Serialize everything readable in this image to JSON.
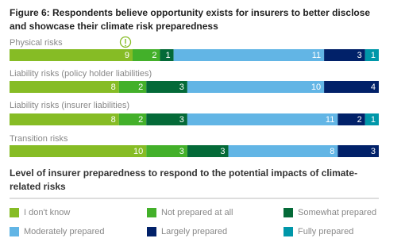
{
  "chart_data": {
    "type": "stacked-bar-horizontal",
    "title": "Figure 6: Respondents believe opportunity exists for insurers to better disclose and showcase their climate risk preparedness",
    "legend_title": "Level of insurer preparedness to respond to the potential impacts of climate-related risks",
    "categories": [
      "Physical risks",
      "Liability risks (policy holder liabilities)",
      "Liability risks (insurer liabilities)",
      "Transition risks"
    ],
    "series": [
      {
        "name": "I don't know",
        "color": "#86bc25",
        "values": [
          9,
          8,
          8,
          10
        ]
      },
      {
        "name": "Not prepared at all",
        "color": "#43b02a",
        "values": [
          2,
          2,
          2,
          3
        ]
      },
      {
        "name": "Somewhat prepared",
        "color": "#046a38",
        "values": [
          1,
          3,
          3,
          3
        ]
      },
      {
        "name": "Moderately prepared",
        "color": "#62b5e5",
        "values": [
          11,
          10,
          11,
          8
        ]
      },
      {
        "name": "Largely prepared",
        "color": "#012169",
        "values": [
          3,
          4,
          2,
          3
        ]
      },
      {
        "name": "Fully prepared",
        "color": "#0097a9",
        "values": [
          1,
          null,
          1,
          null
        ]
      }
    ]
  }
}
